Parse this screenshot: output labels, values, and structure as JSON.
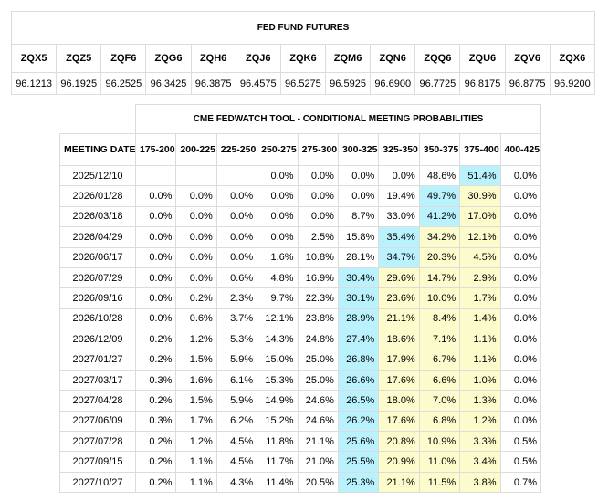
{
  "futures": {
    "title": "FED FUND FUTURES",
    "headers": [
      "ZQX5",
      "ZQZ5",
      "ZQF6",
      "ZQG6",
      "ZQH6",
      "ZQJ6",
      "ZQK6",
      "ZQM6",
      "ZQN6",
      "ZQQ6",
      "ZQU6",
      "ZQV6",
      "ZQX6"
    ],
    "values": [
      "96.1213",
      "96.1925",
      "96.2525",
      "96.3425",
      "96.3875",
      "96.4575",
      "96.5275",
      "96.5925",
      "96.6900",
      "96.7725",
      "96.8175",
      "96.8775",
      "96.9200"
    ]
  },
  "probabilities": {
    "title": "CME FEDWATCH TOOL - CONDITIONAL MEETING PROBABILITIES",
    "date_header": "MEETING DATE",
    "headers": [
      "175-200",
      "200-225",
      "225-250",
      "250-275",
      "275-300",
      "300-325",
      "325-350",
      "350-375",
      "375-400",
      "400-425"
    ],
    "max_color": "#b9f1fc",
    "above_color": "#fbfbcc",
    "rows": [
      {
        "date": "2025/12/10",
        "cells": [
          null,
          null,
          null,
          "0.0%",
          "0.0%",
          "0.0%",
          "0.0%",
          "48.6%",
          "51.4%",
          "0.0%"
        ]
      },
      {
        "date": "2026/01/28",
        "cells": [
          "0.0%",
          "0.0%",
          "0.0%",
          "0.0%",
          "0.0%",
          "0.0%",
          "19.4%",
          "49.7%",
          "30.9%",
          "0.0%"
        ]
      },
      {
        "date": "2026/03/18",
        "cells": [
          "0.0%",
          "0.0%",
          "0.0%",
          "0.0%",
          "0.0%",
          "8.7%",
          "33.0%",
          "41.2%",
          "17.0%",
          "0.0%"
        ]
      },
      {
        "date": "2026/04/29",
        "cells": [
          "0.0%",
          "0.0%",
          "0.0%",
          "0.0%",
          "2.5%",
          "15.8%",
          "35.4%",
          "34.2%",
          "12.1%",
          "0.0%"
        ]
      },
      {
        "date": "2026/06/17",
        "cells": [
          "0.0%",
          "0.0%",
          "0.0%",
          "1.6%",
          "10.8%",
          "28.1%",
          "34.7%",
          "20.3%",
          "4.5%",
          "0.0%"
        ]
      },
      {
        "date": "2026/07/29",
        "cells": [
          "0.0%",
          "0.0%",
          "0.6%",
          "4.8%",
          "16.9%",
          "30.4%",
          "29.6%",
          "14.7%",
          "2.9%",
          "0.0%"
        ]
      },
      {
        "date": "2026/09/16",
        "cells": [
          "0.0%",
          "0.2%",
          "2.3%",
          "9.7%",
          "22.3%",
          "30.1%",
          "23.6%",
          "10.0%",
          "1.7%",
          "0.0%"
        ]
      },
      {
        "date": "2026/10/28",
        "cells": [
          "0.0%",
          "0.6%",
          "3.7%",
          "12.1%",
          "23.8%",
          "28.9%",
          "21.1%",
          "8.4%",
          "1.4%",
          "0.0%"
        ]
      },
      {
        "date": "2026/12/09",
        "cells": [
          "0.2%",
          "1.2%",
          "5.3%",
          "14.3%",
          "24.8%",
          "27.4%",
          "18.6%",
          "7.1%",
          "1.1%",
          "0.0%"
        ]
      },
      {
        "date": "2027/01/27",
        "cells": [
          "0.2%",
          "1.5%",
          "5.9%",
          "15.0%",
          "25.0%",
          "26.8%",
          "17.9%",
          "6.7%",
          "1.1%",
          "0.0%"
        ]
      },
      {
        "date": "2027/03/17",
        "cells": [
          "0.3%",
          "1.6%",
          "6.1%",
          "15.3%",
          "25.0%",
          "26.6%",
          "17.6%",
          "6.6%",
          "1.0%",
          "0.0%"
        ]
      },
      {
        "date": "2027/04/28",
        "cells": [
          "0.2%",
          "1.5%",
          "5.9%",
          "14.9%",
          "24.6%",
          "26.5%",
          "18.0%",
          "7.0%",
          "1.3%",
          "0.0%"
        ]
      },
      {
        "date": "2027/06/09",
        "cells": [
          "0.3%",
          "1.7%",
          "6.2%",
          "15.2%",
          "24.6%",
          "26.2%",
          "17.6%",
          "6.8%",
          "1.2%",
          "0.0%"
        ]
      },
      {
        "date": "2027/07/28",
        "cells": [
          "0.2%",
          "1.2%",
          "4.5%",
          "11.8%",
          "21.1%",
          "25.6%",
          "20.8%",
          "10.9%",
          "3.3%",
          "0.5%"
        ]
      },
      {
        "date": "2027/09/15",
        "cells": [
          "0.2%",
          "1.1%",
          "4.5%",
          "11.7%",
          "21.0%",
          "25.5%",
          "20.9%",
          "11.0%",
          "3.4%",
          "0.5%"
        ]
      },
      {
        "date": "2027/10/27",
        "cells": [
          "0.2%",
          "1.1%",
          "4.3%",
          "11.4%",
          "20.5%",
          "25.3%",
          "21.1%",
          "11.5%",
          "3.8%",
          "0.7%"
        ]
      }
    ]
  }
}
